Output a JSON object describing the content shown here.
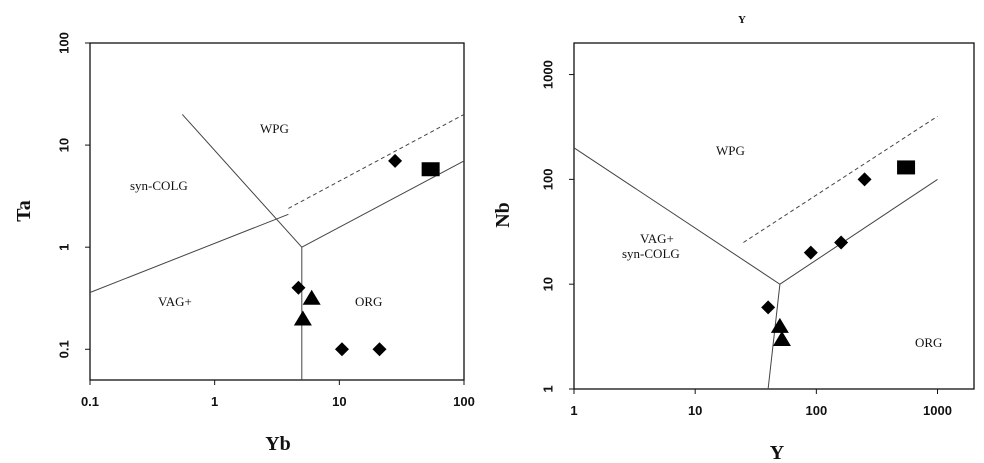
{
  "chart_data": [
    {
      "type": "scatter",
      "xlabel": "Yb",
      "ylabel": "Ta",
      "x_scale": "log",
      "y_scale": "log",
      "xlim": [
        0.1,
        100
      ],
      "ylim": [
        0.05,
        100
      ],
      "x_ticks": [
        "0.1",
        "1",
        "10",
        "100"
      ],
      "y_ticks": [
        "0.1",
        "1",
        "10",
        "100"
      ],
      "grid": false,
      "regions": [
        "WPG",
        "syn-COLG",
        "VAG+",
        "ORG"
      ],
      "boundaries": [
        {
          "style": "solid",
          "points": [
            [
              0.55,
              20
            ],
            [
              5,
              1
            ],
            [
              5,
              0.05
            ]
          ]
        },
        {
          "style": "solid",
          "points": [
            [
              0.1,
              0.36
            ],
            [
              3.9,
              2.1
            ]
          ]
        },
        {
          "style": "solid",
          "points": [
            [
              5,
              1
            ],
            [
              100,
              7
            ]
          ]
        },
        {
          "style": "dashed",
          "points": [
            [
              3.9,
              2.4
            ],
            [
              100,
              20
            ]
          ]
        }
      ],
      "series": [
        {
          "marker": "diamond",
          "points": [
            [
              28,
              7
            ],
            [
              4.7,
              0.4
            ],
            [
              10.5,
              0.1
            ],
            [
              21,
              0.1
            ]
          ]
        },
        {
          "marker": "triangle",
          "points": [
            [
              6,
              0.32
            ],
            [
              5.1,
              0.2
            ]
          ]
        },
        {
          "marker": "square",
          "points": [
            [
              54,
              5.8
            ]
          ]
        }
      ]
    },
    {
      "type": "scatter",
      "title": "Y",
      "xlabel": "Y",
      "ylabel": "Nb",
      "x_scale": "log",
      "y_scale": "log",
      "xlim": [
        1,
        2000
      ],
      "ylim": [
        1,
        2000
      ],
      "x_ticks": [
        "1",
        "10",
        "100",
        "1000"
      ],
      "y_ticks": [
        "1",
        "10",
        "100",
        "1000"
      ],
      "grid": false,
      "regions": [
        "WPG",
        "VAG+",
        "syn-COLG",
        "ORG"
      ],
      "boundaries": [
        {
          "style": "solid",
          "points": [
            [
              1,
              200
            ],
            [
              50,
              10
            ],
            [
              40,
              1
            ]
          ]
        },
        {
          "style": "solid",
          "points": [
            [
              50,
              10
            ],
            [
              1000,
              100
            ]
          ]
        },
        {
          "style": "dashed",
          "points": [
            [
              25,
              25
            ],
            [
              1000,
              400
            ]
          ]
        }
      ],
      "series": [
        {
          "marker": "diamond",
          "points": [
            [
              40,
              6
            ],
            [
              90,
              20
            ],
            [
              160,
              25
            ],
            [
              250,
              100
            ]
          ]
        },
        {
          "marker": "triangle",
          "points": [
            [
              50,
              4
            ],
            [
              52,
              3
            ]
          ]
        },
        {
          "marker": "square",
          "points": [
            [
              550,
              130
            ]
          ]
        }
      ]
    }
  ]
}
